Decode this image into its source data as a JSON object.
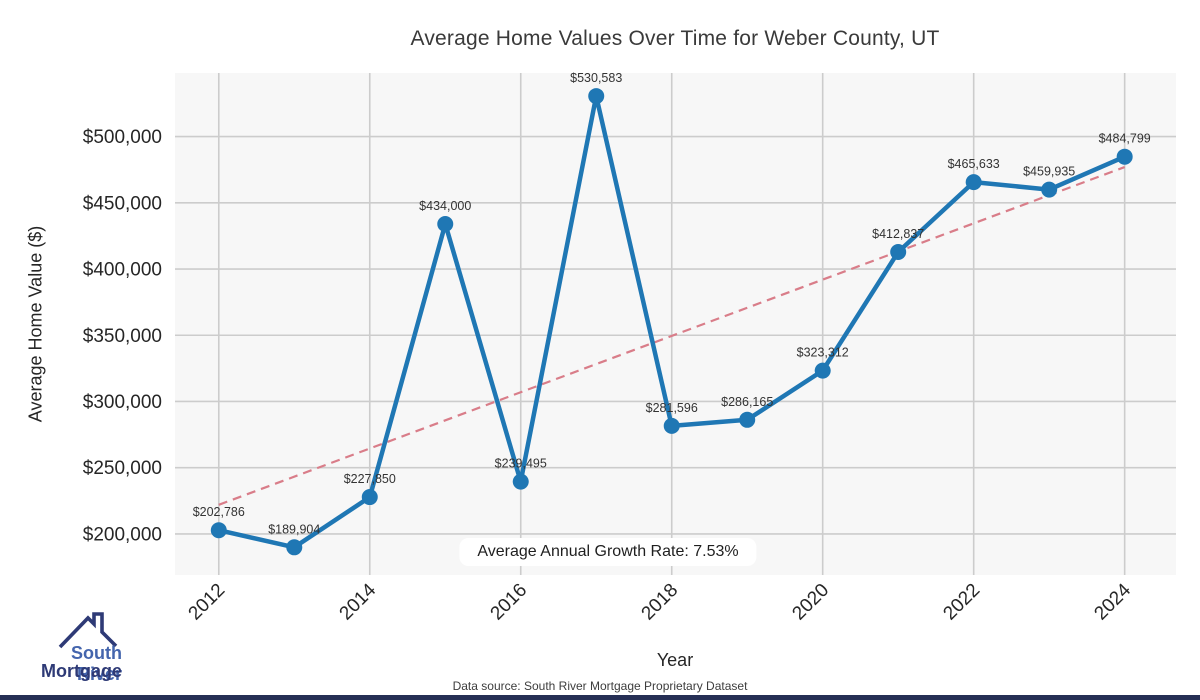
{
  "chart_data": {
    "type": "line",
    "title": "Average Home Values Over Time for Weber County, UT",
    "xlabel": "Year",
    "ylabel": "Average Home Value ($)",
    "x": [
      2012,
      2013,
      2014,
      2015,
      2016,
      2017,
      2018,
      2019,
      2020,
      2021,
      2022,
      2023,
      2024
    ],
    "values": [
      202786,
      189904,
      227850,
      434000,
      239495,
      530583,
      281596,
      286165,
      323312,
      412837,
      465633,
      459935,
      484799
    ],
    "point_labels": [
      "$202,786",
      "$189,904",
      "$227,850",
      "$434,000",
      "$239,495",
      "$530,583",
      "$281,596",
      "$286,165",
      "$323,312",
      "$412,837",
      "$465,633",
      "$459,935",
      "$484,799"
    ],
    "xticks": [
      2012,
      2014,
      2016,
      2018,
      2020,
      2022,
      2024
    ],
    "yticks": [
      200000,
      250000,
      300000,
      350000,
      400000,
      450000,
      500000
    ],
    "ytick_labels": [
      "$200,000",
      "$250,000",
      "$300,000",
      "$350,000",
      "$400,000",
      "$450,000",
      "$500,000"
    ],
    "xlim": [
      2011.42,
      2024.68
    ],
    "ylim": [
      169000,
      548000
    ],
    "grid": true,
    "legend": "none",
    "annotation": "Average Annual Growth Rate: 7.53%",
    "trendline": {
      "style": "dashed",
      "x": [
        2012,
        2024
      ],
      "values": [
        222000,
        477000
      ]
    },
    "colors": {
      "series": "#1f77b4",
      "trend": "#d97d89",
      "grid": "#cccccc",
      "plot_background": "#f7f7f7",
      "point_label_text": "#333333"
    }
  },
  "logo": {
    "line1": "South River",
    "line2": "Mortgage"
  },
  "footer": {
    "source": "Data source: South River Mortgage Proprietary Dataset"
  }
}
